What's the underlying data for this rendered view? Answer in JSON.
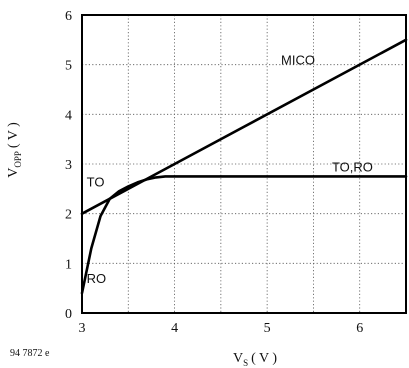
{
  "figure_id": "94 7872 e",
  "chart_data": {
    "type": "line",
    "title": "",
    "xlabel": {
      "main": "V",
      "sub": "S",
      "unit": "( V )"
    },
    "ylabel": {
      "main": "V",
      "sub": "OPP",
      "unit": "( V )"
    },
    "xlim": [
      3,
      6.5
    ],
    "ylim": [
      0,
      6
    ],
    "xticks": [
      3,
      4,
      5,
      6
    ],
    "yticks": [
      0,
      1,
      2,
      3,
      4,
      5,
      6
    ],
    "grid": true,
    "series": [
      {
        "name": "MICO",
        "x": [
          3.0,
          6.5
        ],
        "y": [
          2.0,
          5.5
        ]
      },
      {
        "name": "TO,RO",
        "x": [
          3.0,
          3.1,
          3.2,
          3.3,
          3.4,
          3.5,
          3.6,
          3.7,
          3.8,
          3.9,
          4.0,
          4.5,
          5.0,
          5.5,
          6.0,
          6.5
        ],
        "y": [
          0.4,
          1.3,
          1.95,
          2.3,
          2.45,
          2.55,
          2.63,
          2.69,
          2.73,
          2.75,
          2.75,
          2.75,
          2.75,
          2.75,
          2.75,
          2.75
        ]
      }
    ],
    "annotations": [
      {
        "text": "MICO",
        "x": 5.15,
        "y": 5.0
      },
      {
        "text": "TO,RO",
        "x": 5.7,
        "y": 2.85
      },
      {
        "text": "TO",
        "x": 3.05,
        "y": 2.55
      },
      {
        "text": "RO",
        "x": 3.05,
        "y": 0.6
      }
    ]
  }
}
